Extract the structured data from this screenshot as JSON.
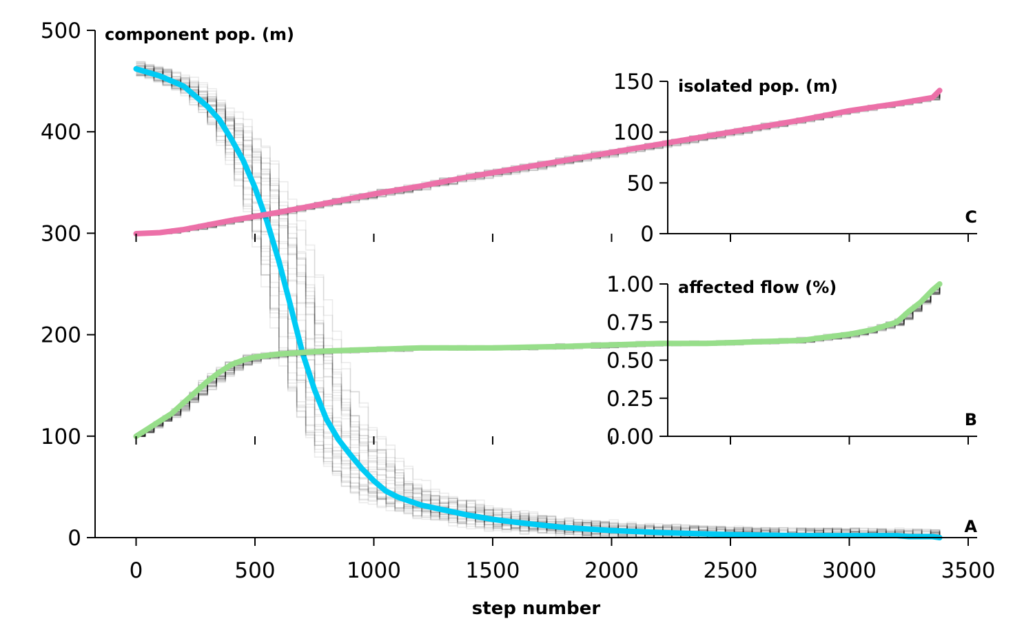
{
  "chart_data": [
    {
      "id": "A",
      "type": "line",
      "title": "component pop. (m)",
      "panel_label": "A",
      "xlabel": "step number",
      "ylabel": "",
      "xlim": [
        -170,
        3540
      ],
      "ylim": [
        0,
        500
      ],
      "xticks": [
        0,
        500,
        1000,
        1500,
        2000,
        2500,
        3000,
        3500
      ],
      "yticks": [
        0,
        100,
        200,
        300,
        400,
        500
      ],
      "xtick_labels": [
        "0",
        "500",
        "1000",
        "1500",
        "2000",
        "2500",
        "3000",
        "3500"
      ],
      "ytick_labels": [
        "0",
        "100",
        "200",
        "300",
        "400",
        "500"
      ],
      "ensemble": {
        "count": 40,
        "color": "#000000",
        "opacity": 0.08
      },
      "series": [
        {
          "color": "#00cbf5",
          "x": [
            0,
            100,
            200,
            250,
            300,
            350,
            400,
            450,
            500,
            550,
            600,
            650,
            700,
            750,
            800,
            850,
            900,
            950,
            1000,
            1050,
            1100,
            1200,
            1300,
            1400,
            1500,
            1600,
            1800,
            2000,
            2200,
            2500,
            2800,
            3000,
            3200,
            3250,
            3300,
            3350,
            3380
          ],
          "y": [
            462,
            455,
            445,
            435,
            425,
            412,
            393,
            372,
            345,
            312,
            273,
            228,
            182,
            146,
            117,
            97,
            82,
            68,
            56,
            46,
            40,
            32,
            27,
            22,
            18,
            15,
            10,
            7,
            5,
            3,
            2,
            2,
            2,
            1,
            1,
            1,
            0
          ]
        }
      ]
    },
    {
      "id": "C",
      "type": "line",
      "title": "isolated pop. (m)",
      "panel_label": "C",
      "xlim": [
        -170,
        3540
      ],
      "ylim": [
        0,
        150
      ],
      "xticks": [
        0,
        500,
        1000,
        1500,
        2000,
        2500,
        3000,
        3500
      ],
      "yticks": [
        0,
        50,
        100,
        150
      ],
      "ytick_labels": [
        "0",
        "50",
        "100",
        "150"
      ],
      "ensemble": {
        "count": 25,
        "color": "#000000",
        "opacity": 0.1
      },
      "series": [
        {
          "color": "#ec70a8",
          "x": [
            0,
            100,
            200,
            400,
            600,
            800,
            1000,
            1200,
            1400,
            1600,
            1800,
            2000,
            2200,
            2400,
            2600,
            2800,
            3000,
            3200,
            3350,
            3380
          ],
          "y": [
            0,
            1,
            4,
            13,
            21,
            30,
            39,
            47,
            56,
            64,
            72,
            80,
            88,
            96,
            104,
            112,
            121,
            128,
            134,
            141
          ]
        }
      ]
    },
    {
      "id": "B",
      "type": "line",
      "title": "affected flow (%)",
      "panel_label": "B",
      "xlim": [
        -170,
        3540
      ],
      "ylim": [
        0,
        1
      ],
      "xticks": [
        0,
        500,
        1000,
        1500,
        2000,
        2500,
        3000,
        3500
      ],
      "yticks": [
        0,
        0.25,
        0.5,
        0.75,
        1.0
      ],
      "ytick_labels": [
        "0.00",
        "0.25",
        "0.50",
        "0.75",
        "1.00"
      ],
      "ensemble": {
        "count": 25,
        "color": "#000000",
        "opacity": 0.12
      },
      "series": [
        {
          "color": "#97de8a",
          "x": [
            0,
            50,
            100,
            150,
            200,
            250,
            300,
            350,
            400,
            450,
            500,
            600,
            700,
            800,
            1000,
            1200,
            1500,
            1800,
            2000,
            2200,
            2400,
            2600,
            2800,
            3000,
            3100,
            3200,
            3250,
            3300,
            3350,
            3380
          ],
          "y": [
            0,
            0.05,
            0.1,
            0.15,
            0.22,
            0.29,
            0.36,
            0.42,
            0.47,
            0.5,
            0.52,
            0.54,
            0.55,
            0.56,
            0.57,
            0.58,
            0.58,
            0.59,
            0.6,
            0.61,
            0.61,
            0.62,
            0.63,
            0.67,
            0.7,
            0.75,
            0.82,
            0.88,
            0.96,
            1.0
          ]
        }
      ]
    }
  ]
}
